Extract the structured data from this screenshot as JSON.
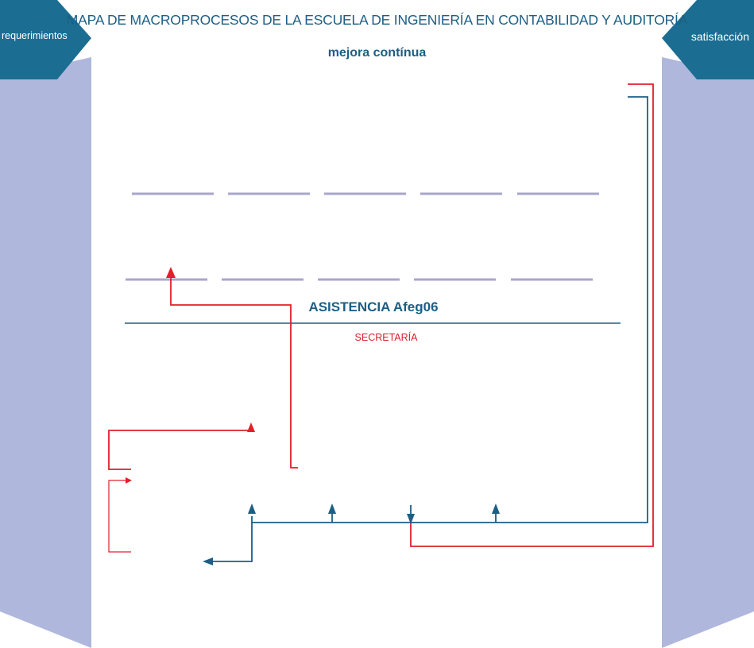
{
  "title": "MAPA DE MACROPROCESOS DE LA ESCUELA DE INGENIERÍA EN CONTABILIDAD Y AUDITORÍA",
  "subtitle": "mejora contínua",
  "left_tab": {
    "label": "requerimientos"
  },
  "right_tab": {
    "label": "satisfacción"
  },
  "support_process": {
    "title": "ASISTENCIA Afeg06",
    "area": "SECRETARÍA"
  },
  "colors": {
    "primary": "#1c5f85",
    "accent_red": "#e0202a",
    "side_panel": "#b0b7dd",
    "dash_line": "#a9a6cd"
  }
}
